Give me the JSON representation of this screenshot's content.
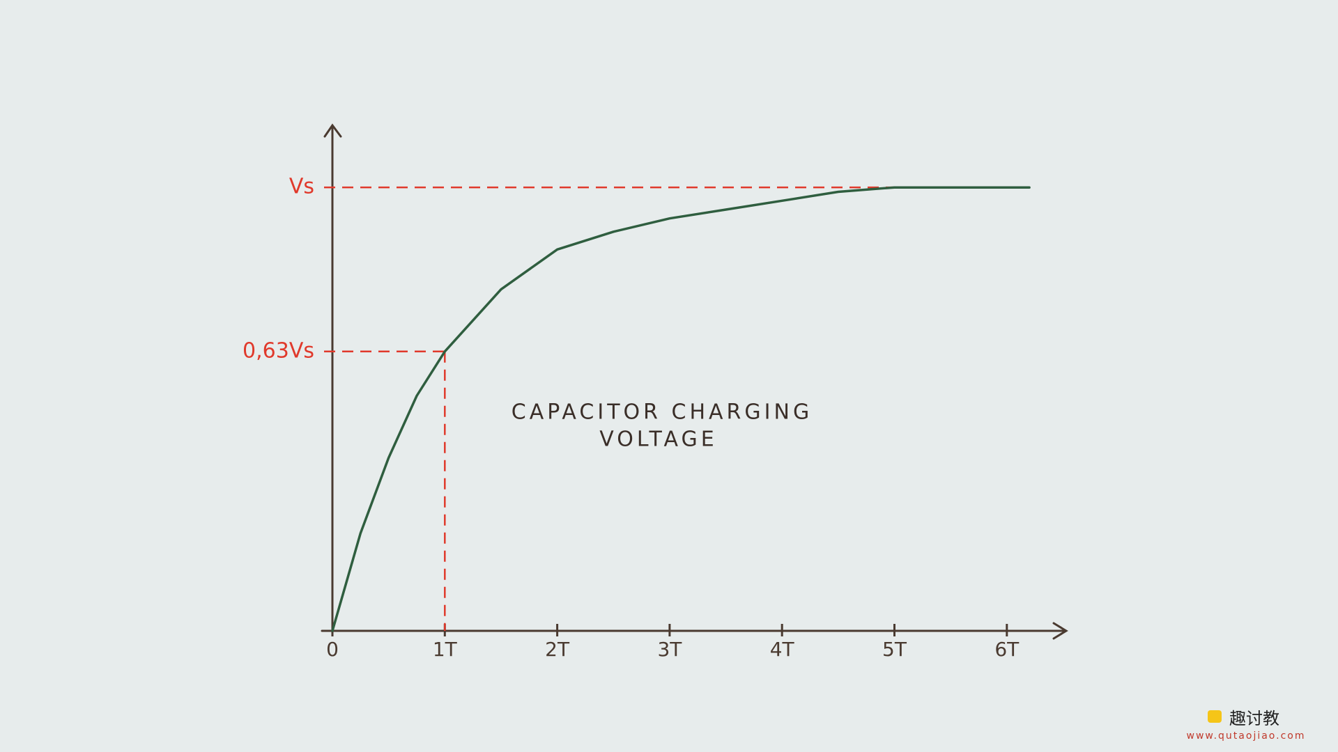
{
  "chart_data": {
    "type": "line",
    "annotation": [
      "CAPACITOR CHARGING",
      "VOLTAGE"
    ],
    "x": [
      0,
      0.25,
      0.5,
      0.75,
      1,
      1.5,
      2,
      2.5,
      3,
      3.5,
      4,
      4.5,
      5,
      5.5,
      6,
      6.2
    ],
    "values": [
      0,
      0.22,
      0.39,
      0.53,
      0.63,
      0.77,
      0.86,
      0.9,
      0.93,
      0.95,
      0.97,
      0.99,
      1,
      1,
      1,
      1
    ],
    "color": "#2f5e3f",
    "xlim": [
      0,
      6.5
    ],
    "xticks": [
      0,
      {
        "value": 1,
        "label": "1T"
      },
      {
        "value": 2,
        "label": "2T"
      },
      {
        "value": 3,
        "label": "3T"
      },
      {
        "value": 4,
        "label": "4T"
      },
      {
        "value": 5,
        "label": "5T"
      },
      {
        "value": 6,
        "label": "6T"
      }
    ],
    "ylim": [
      0,
      1.14
    ],
    "yticks": [
      {
        "value": 0.63,
        "label": "0,63Vs"
      },
      {
        "value": 1,
        "label": "Vs"
      }
    ],
    "guide_color": "#e0392b"
  },
  "watermark": {
    "brand": "趣讨教",
    "url": "www.qutaojiao.com"
  }
}
